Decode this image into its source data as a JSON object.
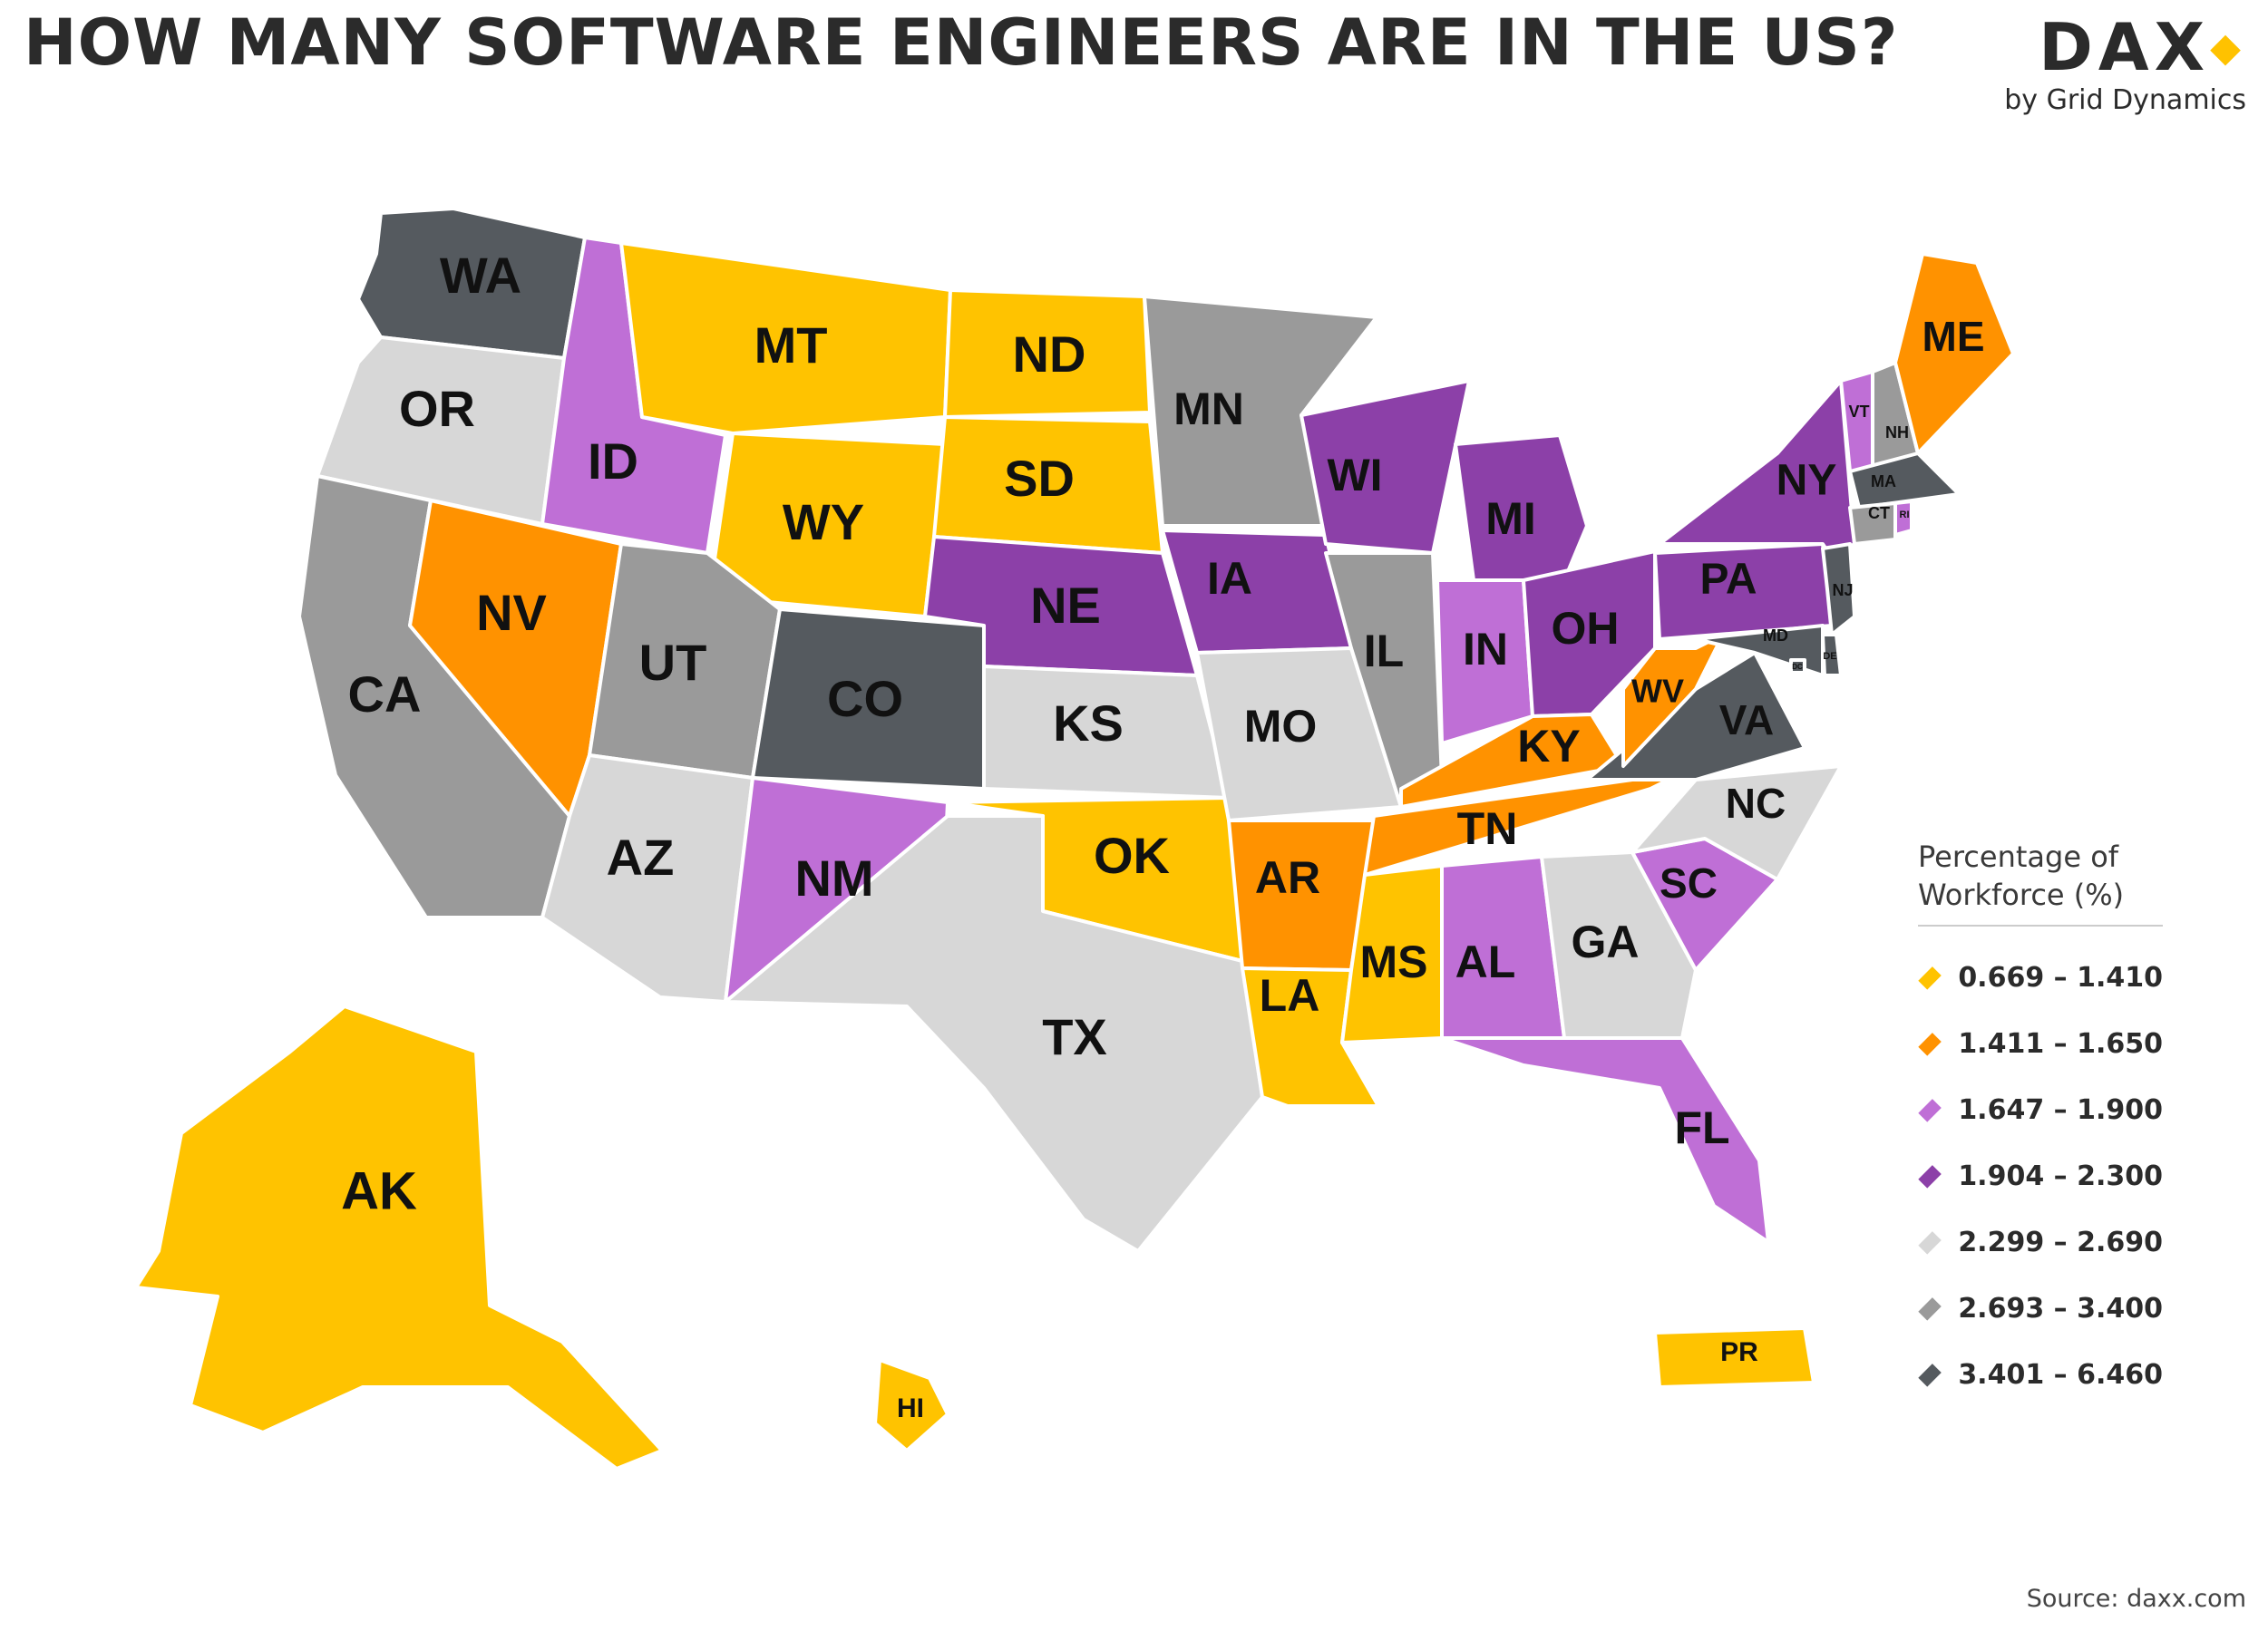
{
  "title": "HOW MANY SOFTWARE ENGINEERS ARE IN THE US?",
  "brand": {
    "logo": "DA",
    "logo_tail": "X",
    "logo_mark": "◆",
    "subtitle": "by Grid Dynamics"
  },
  "legend": {
    "title": "Percentage of Workforce (%)",
    "items": [
      {
        "label": "0.669 – 1.410",
        "color": "#ffc300"
      },
      {
        "label": "1.411 – 1.650",
        "color": "#ff9200"
      },
      {
        "label": "1.647 – 1.900",
        "color": "#bf6fd6"
      },
      {
        "label": "1.904 – 2.300",
        "color": "#8c40a8"
      },
      {
        "label": "2.299 – 2.690",
        "color": "#d7d7d7"
      },
      {
        "label": "2.693 – 3.400",
        "color": "#9a9a9a"
      },
      {
        "label": "3.401 – 6.460",
        "color": "#555a5f"
      }
    ]
  },
  "states": [
    {
      "abbr": "WA",
      "tier": 6
    },
    {
      "abbr": "OR",
      "tier": 4
    },
    {
      "abbr": "CA",
      "tier": 5
    },
    {
      "abbr": "ID",
      "tier": 2
    },
    {
      "abbr": "NV",
      "tier": 1
    },
    {
      "abbr": "MT",
      "tier": 0
    },
    {
      "abbr": "WY",
      "tier": 0
    },
    {
      "abbr": "UT",
      "tier": 5
    },
    {
      "abbr": "AZ",
      "tier": 4
    },
    {
      "abbr": "CO",
      "tier": 6
    },
    {
      "abbr": "NM",
      "tier": 2
    },
    {
      "abbr": "ND",
      "tier": 0
    },
    {
      "abbr": "SD",
      "tier": 0
    },
    {
      "abbr": "NE",
      "tier": 3
    },
    {
      "abbr": "KS",
      "tier": 4
    },
    {
      "abbr": "OK",
      "tier": 0
    },
    {
      "abbr": "TX",
      "tier": 4
    },
    {
      "abbr": "MN",
      "tier": 5
    },
    {
      "abbr": "IA",
      "tier": 3
    },
    {
      "abbr": "MO",
      "tier": 4
    },
    {
      "abbr": "AR",
      "tier": 1
    },
    {
      "abbr": "LA",
      "tier": 0
    },
    {
      "abbr": "WI",
      "tier": 3
    },
    {
      "abbr": "IL",
      "tier": 5
    },
    {
      "abbr": "MI",
      "tier": 3
    },
    {
      "abbr": "IN",
      "tier": 2
    },
    {
      "abbr": "OH",
      "tier": 3
    },
    {
      "abbr": "KY",
      "tier": 1
    },
    {
      "abbr": "TN",
      "tier": 1
    },
    {
      "abbr": "MS",
      "tier": 0
    },
    {
      "abbr": "AL",
      "tier": 2
    },
    {
      "abbr": "GA",
      "tier": 4
    },
    {
      "abbr": "FL",
      "tier": 2
    },
    {
      "abbr": "SC",
      "tier": 2
    },
    {
      "abbr": "NC",
      "tier": 4
    },
    {
      "abbr": "VA",
      "tier": 6
    },
    {
      "abbr": "WV",
      "tier": 1
    },
    {
      "abbr": "PA",
      "tier": 3
    },
    {
      "abbr": "NY",
      "tier": 3
    },
    {
      "abbr": "VT",
      "tier": 2
    },
    {
      "abbr": "NH",
      "tier": 5
    },
    {
      "abbr": "ME",
      "tier": 1
    },
    {
      "abbr": "MA",
      "tier": 6
    },
    {
      "abbr": "CT",
      "tier": 5
    },
    {
      "abbr": "RI",
      "tier": 2
    },
    {
      "abbr": "NJ",
      "tier": 6
    },
    {
      "abbr": "DE",
      "tier": 6
    },
    {
      "abbr": "MD",
      "tier": 6
    },
    {
      "abbr": "DC",
      "tier": 6
    },
    {
      "abbr": "AK",
      "tier": 0
    },
    {
      "abbr": "HI",
      "tier": 0
    },
    {
      "abbr": "PR",
      "tier": 0
    }
  ],
  "source": "Source: daxx.com"
}
